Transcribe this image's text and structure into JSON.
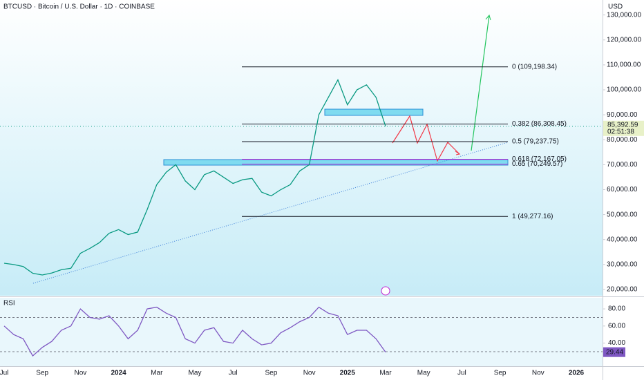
{
  "chart_data": [
    {
      "type": "line",
      "title": "BTCUSD · Bitcoin / U.S. Dollar · 1D · COINBASE",
      "y_axis_label": "USD",
      "categories": [
        "Jul",
        null,
        null,
        null,
        "Sep",
        null,
        null,
        null,
        "Nov",
        null,
        null,
        null,
        "2024",
        null,
        null,
        null,
        "Mar",
        null,
        null,
        null,
        "May",
        null,
        null,
        null,
        "Jul",
        null,
        null,
        null,
        "Sep",
        null,
        null,
        null,
        "Nov",
        null,
        null,
        null,
        "2025",
        null,
        null,
        null,
        "Mar",
        null,
        null,
        null,
        "May",
        null,
        null,
        null,
        "Jul",
        null,
        null,
        null,
        "Sep",
        null,
        null,
        null,
        "Nov",
        null,
        null,
        null,
        "2026",
        null
      ],
      "series": [
        {
          "name": "BTCUSD",
          "color": "#089981",
          "values": [
            30500,
            30000,
            29200,
            26500,
            25800,
            26600,
            27900,
            28500,
            34500,
            36500,
            38800,
            42500,
            44000,
            42000,
            43000,
            52000,
            62000,
            67000,
            70000,
            63500,
            60000,
            66000,
            67500,
            65000,
            62500,
            64000,
            64500,
            59000,
            57500,
            60000,
            62000,
            67500,
            70000,
            90000,
            97000,
            104000,
            94000,
            100000,
            102000,
            97000,
            85392.59,
            null,
            null,
            null,
            null,
            null,
            null,
            null,
            null,
            null,
            null,
            null,
            null,
            null,
            null,
            null,
            null,
            null,
            null,
            null,
            null,
            null
          ]
        }
      ],
      "last_price": {
        "value": 85392.59,
        "label": "85,392.59"
      },
      "countdown": "02:51:38",
      "ylim": [
        17500,
        136000
      ],
      "yticks": [
        {
          "value": 20000,
          "label": "20,000.00"
        },
        {
          "value": 30000,
          "label": "30,000.00"
        },
        {
          "value": 40000,
          "label": "40,000.00"
        },
        {
          "value": 50000,
          "label": "50,000.00"
        },
        {
          "value": 60000,
          "label": "60,000.00"
        },
        {
          "value": 70000,
          "label": "70,000.00"
        },
        {
          "value": 80000,
          "label": "80,000.00"
        },
        {
          "value": 90000,
          "label": "90,000.00"
        },
        {
          "value": 100000,
          "label": "100,000.00"
        },
        {
          "value": 110000,
          "label": "110,000.00"
        },
        {
          "value": 120000,
          "label": "120,000.00"
        },
        {
          "value": 130000,
          "label": "130,000.00"
        }
      ],
      "fib_levels": [
        {
          "value": 109198.34,
          "label": "0 (109,198.34)",
          "color": "#131722"
        },
        {
          "value": 86308.45,
          "label": "0.382 (86,308.45)",
          "color": "#131722"
        },
        {
          "value": 79237.75,
          "label": "0.5 (79,237.75)",
          "color": "#131722"
        },
        {
          "value": 72167.05,
          "label": "0.618 (72,167.05)",
          "color": "#c026d3"
        },
        {
          "value": 70249.57,
          "label": "0.65 (70,249.57)",
          "color": "#c026d3"
        },
        {
          "value": 49277.16,
          "label": "1 (49,277.16)",
          "color": "#131722"
        }
      ]
    },
    {
      "type": "line",
      "title": "RSI",
      "series": [
        {
          "name": "RSI",
          "color": "#7e57c2",
          "values": [
            60,
            50,
            45,
            25,
            35,
            42,
            55,
            60,
            80,
            70,
            68,
            72,
            60,
            45,
            55,
            80,
            82,
            75,
            70,
            45,
            40,
            55,
            58,
            42,
            40,
            55,
            45,
            38,
            40,
            52,
            58,
            65,
            70,
            82,
            75,
            72,
            50,
            55,
            55,
            45,
            29.44,
            null,
            null,
            null,
            null,
            null,
            null,
            null,
            null,
            null,
            null,
            null,
            null,
            null,
            null,
            null,
            null,
            null,
            null,
            null,
            null,
            null
          ]
        }
      ],
      "last_value": {
        "value": 29.44,
        "label": "29.44"
      },
      "ylim": [
        13,
        93
      ],
      "yticks": [
        {
          "value": 40,
          "label": "40.00"
        },
        {
          "value": 60,
          "label": "60.00"
        },
        {
          "value": 80,
          "label": "80.00"
        }
      ],
      "bands": [
        30,
        70
      ]
    }
  ]
}
